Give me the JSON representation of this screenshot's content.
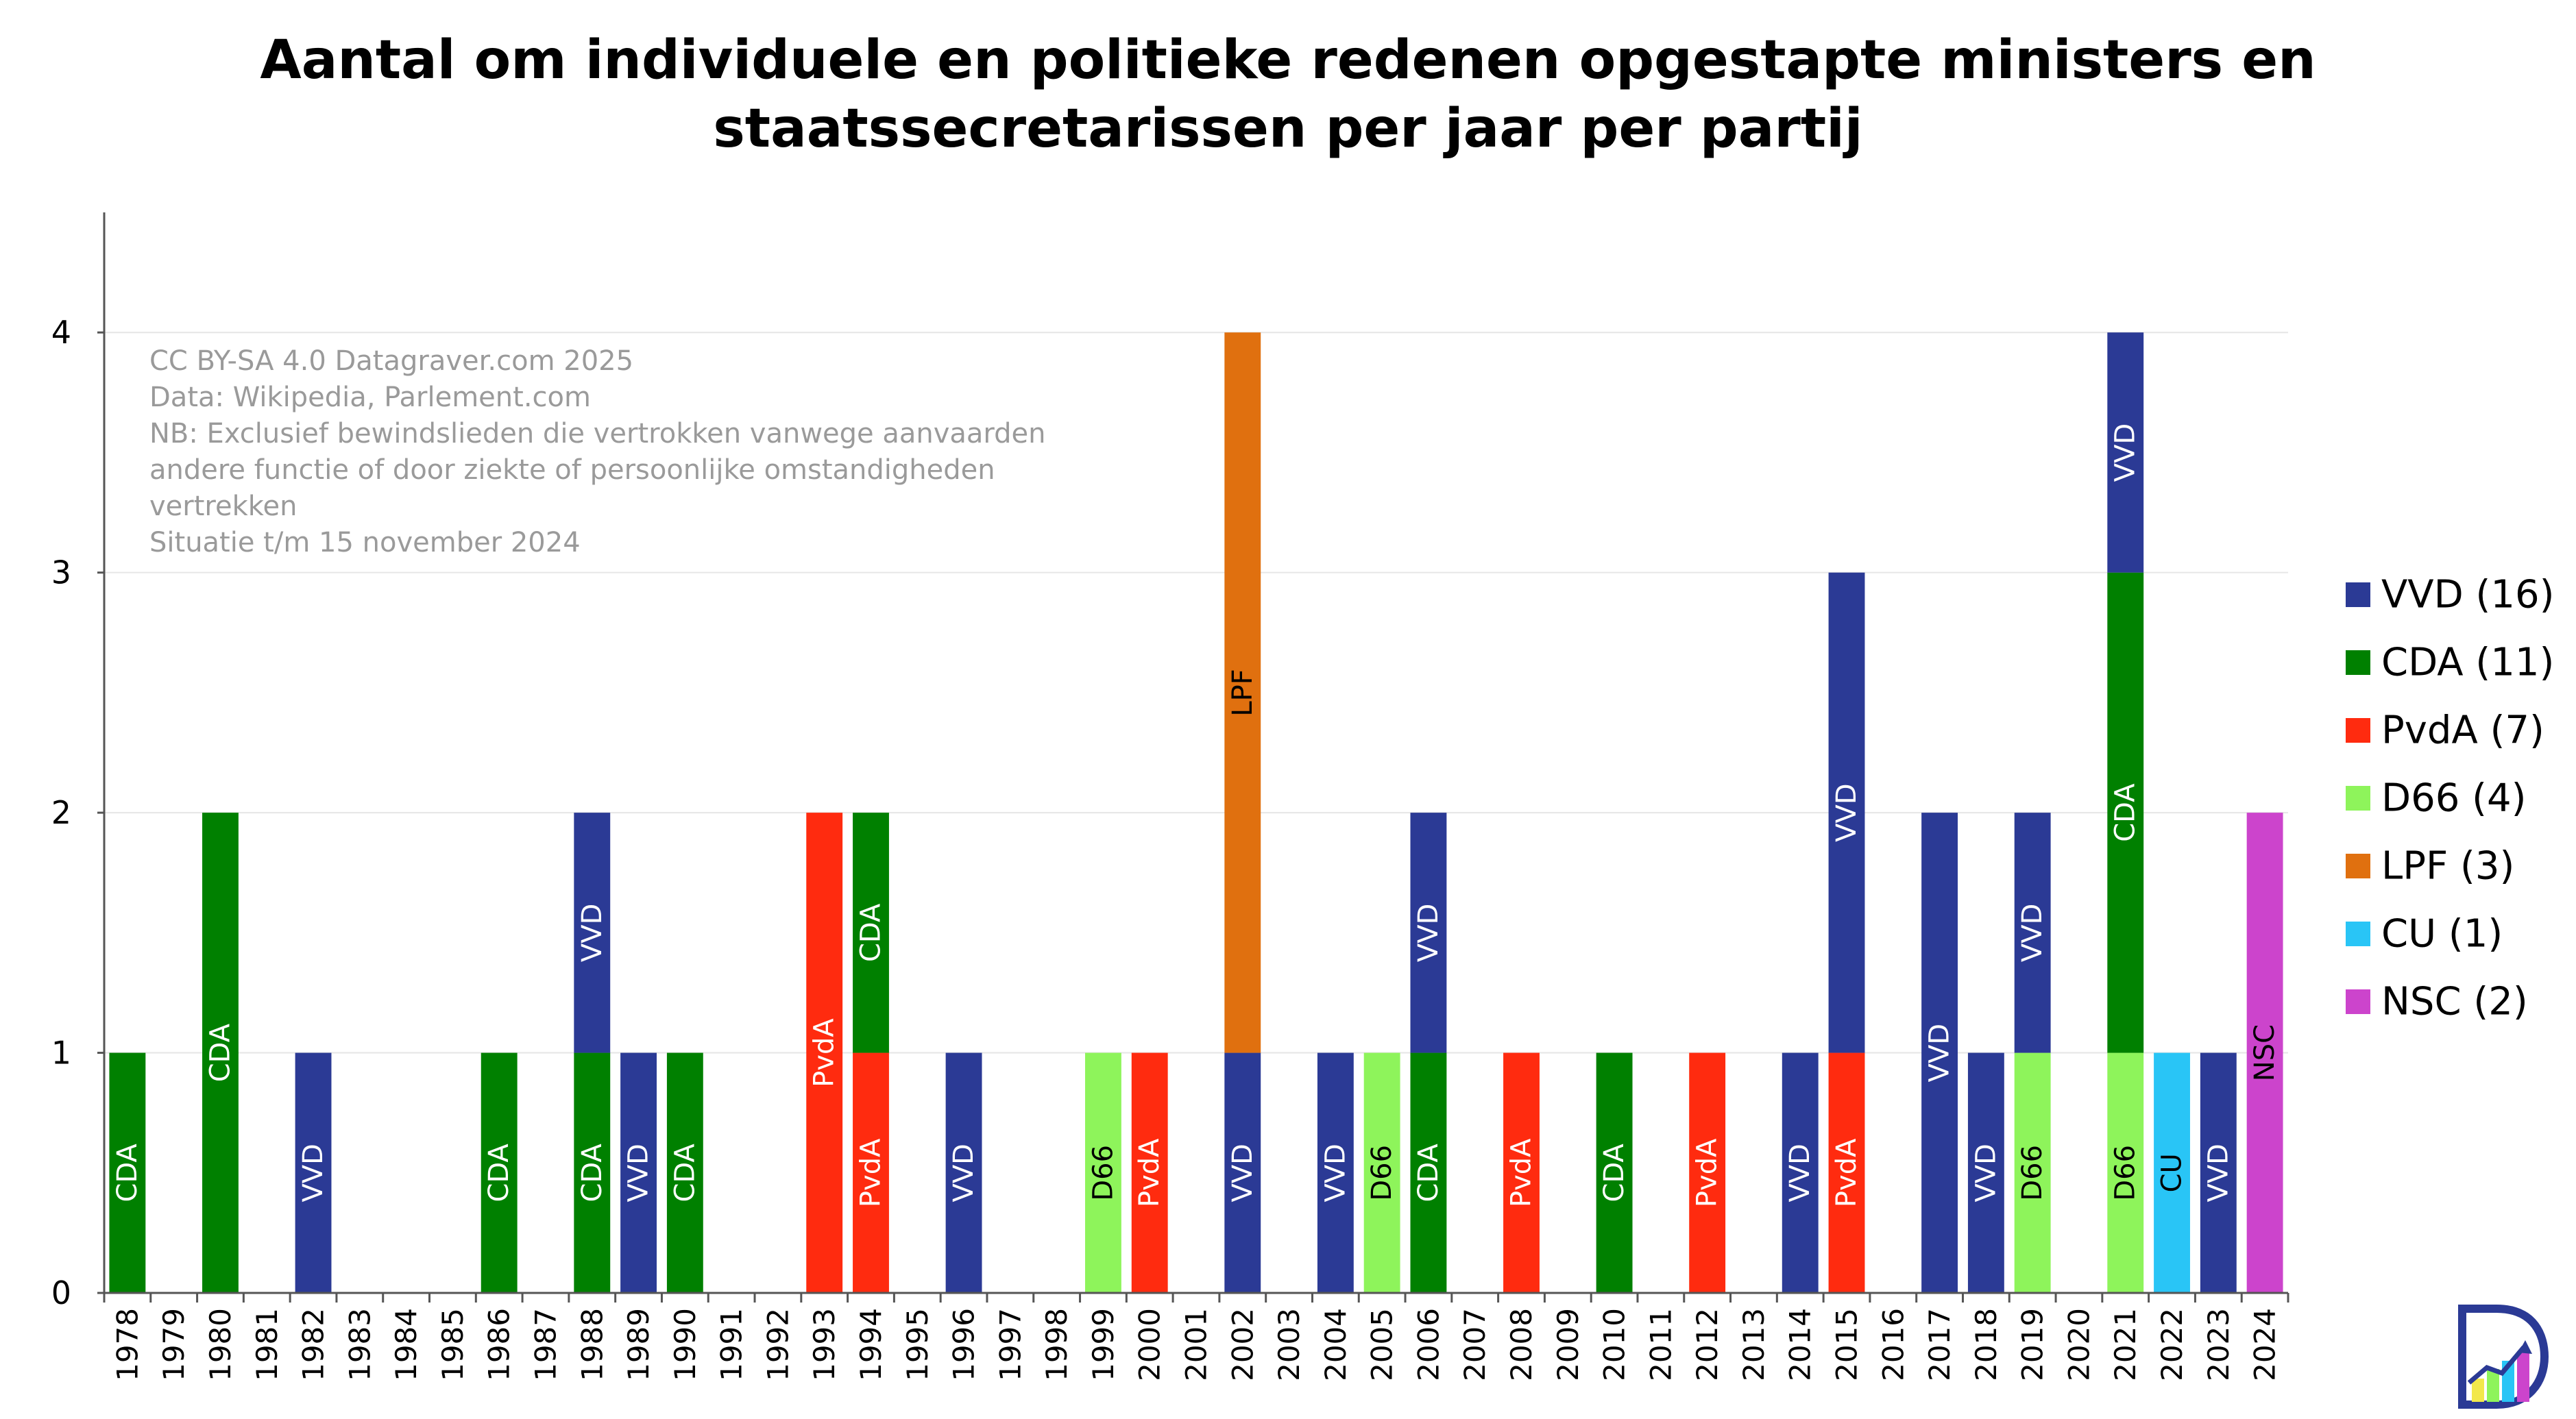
{
  "chart_data": {
    "type": "bar",
    "stacked": true,
    "title_lines": [
      "Aantal om individuele en politieke redenen opgestapte ministers en",
      "staatssecretarissen per jaar per partij"
    ],
    "annotation_lines": [
      "CC BY-SA 4.0 Datagraver.com 2025",
      "Data: Wikipedia, Parlement.com",
      "NB: Exclusief bewindslieden die vertrokken vanwege aanvaarden",
      "andere functie of door ziekte of persoonlijke omstandigheden",
      "vertrekken",
      "Situatie t/m  15 november 2024"
    ],
    "ylim": [
      0,
      4.5
    ],
    "yticks": [
      "0",
      "1",
      "2",
      "3",
      "4"
    ],
    "grid": true,
    "legend_position": "right",
    "categories": [
      "1978",
      "1979",
      "1980",
      "1981",
      "1982",
      "1983",
      "1984",
      "1985",
      "1986",
      "1987",
      "1988",
      "1989",
      "1990",
      "1991",
      "1992",
      "1993",
      "1994",
      "1995",
      "1996",
      "1997",
      "1998",
      "1999",
      "2000",
      "2001",
      "2002",
      "2003",
      "2004",
      "2005",
      "2006",
      "2007",
      "2008",
      "2009",
      "2010",
      "2011",
      "2012",
      "2013",
      "2014",
      "2015",
      "2016",
      "2017",
      "2018",
      "2019",
      "2020",
      "2021",
      "2022",
      "2023",
      "2024"
    ],
    "series": [
      {
        "name": "D66",
        "legend": "D66 (4)",
        "color": "#8EF45B",
        "label_color": "#000000",
        "values": [
          0,
          0,
          0,
          0,
          0,
          0,
          0,
          0,
          0,
          0,
          0,
          0,
          0,
          0,
          0,
          0,
          0,
          0,
          0,
          0,
          0,
          1,
          0,
          0,
          0,
          0,
          0,
          1,
          0,
          0,
          0,
          0,
          0,
          0,
          0,
          0,
          0,
          0,
          0,
          0,
          0,
          1,
          0,
          1,
          0,
          0,
          0
        ]
      },
      {
        "name": "PvdA",
        "legend": "PvdA (7)",
        "color": "#FF2B0F",
        "label_color": "#ffffff",
        "values": [
          0,
          0,
          0,
          0,
          0,
          0,
          0,
          0,
          0,
          0,
          0,
          0,
          0,
          0,
          0,
          2,
          1,
          0,
          0,
          0,
          0,
          0,
          1,
          0,
          0,
          0,
          0,
          0,
          0,
          0,
          1,
          0,
          0,
          0,
          1,
          0,
          0,
          1,
          0,
          0,
          0,
          0,
          0,
          0,
          0,
          0,
          0
        ]
      },
      {
        "name": "CDA",
        "legend": "CDA (11)",
        "color": "#008000",
        "label_color": "#ffffff",
        "values": [
          1,
          0,
          2,
          0,
          0,
          0,
          0,
          0,
          1,
          0,
          1,
          0,
          1,
          0,
          0,
          0,
          1,
          0,
          0,
          0,
          0,
          0,
          0,
          0,
          0,
          0,
          0,
          0,
          1,
          0,
          0,
          0,
          1,
          0,
          0,
          0,
          0,
          0,
          0,
          0,
          0,
          0,
          0,
          2,
          0,
          0,
          0
        ]
      },
      {
        "name": "VVD",
        "legend": "VVD (16)",
        "color": "#2B3A95",
        "label_color": "#ffffff",
        "values": [
          0,
          0,
          0,
          0,
          1,
          0,
          0,
          0,
          0,
          0,
          1,
          1,
          0,
          0,
          0,
          0,
          0,
          0,
          1,
          0,
          0,
          0,
          0,
          0,
          1,
          0,
          1,
          0,
          1,
          0,
          0,
          0,
          0,
          0,
          0,
          0,
          1,
          2,
          0,
          2,
          1,
          1,
          0,
          1,
          0,
          1,
          0
        ]
      },
      {
        "name": "LPF",
        "legend": "LPF (3)",
        "color": "#E0700F",
        "label_color": "#000000",
        "values": [
          0,
          0,
          0,
          0,
          0,
          0,
          0,
          0,
          0,
          0,
          0,
          0,
          0,
          0,
          0,
          0,
          0,
          0,
          0,
          0,
          0,
          0,
          0,
          0,
          3,
          0,
          0,
          0,
          0,
          0,
          0,
          0,
          0,
          0,
          0,
          0,
          0,
          0,
          0,
          0,
          0,
          0,
          0,
          0,
          0,
          0,
          0
        ]
      },
      {
        "name": "CU",
        "legend": "CU (1)",
        "color": "#29C5F6",
        "label_color": "#000000",
        "values": [
          0,
          0,
          0,
          0,
          0,
          0,
          0,
          0,
          0,
          0,
          0,
          0,
          0,
          0,
          0,
          0,
          0,
          0,
          0,
          0,
          0,
          0,
          0,
          0,
          0,
          0,
          0,
          0,
          0,
          0,
          0,
          0,
          0,
          0,
          0,
          0,
          0,
          0,
          0,
          0,
          0,
          0,
          0,
          0,
          1,
          0,
          0
        ]
      },
      {
        "name": "NSC",
        "legend": "NSC (2)",
        "color": "#CC44CC",
        "label_color": "#000000",
        "values": [
          0,
          0,
          0,
          0,
          0,
          0,
          0,
          0,
          0,
          0,
          0,
          0,
          0,
          0,
          0,
          0,
          0,
          0,
          0,
          0,
          0,
          0,
          0,
          0,
          0,
          0,
          0,
          0,
          0,
          0,
          0,
          0,
          0,
          0,
          0,
          0,
          0,
          0,
          0,
          0,
          0,
          0,
          0,
          0,
          0,
          0,
          2
        ]
      }
    ],
    "legend_order": [
      "VVD",
      "CDA",
      "PvdA",
      "D66",
      "LPF",
      "CU",
      "NSC"
    ]
  },
  "logo": {
    "name": "datagraver-logo",
    "colors": [
      "#2B3A95",
      "#F2E84B",
      "#8EF45B",
      "#29C5F6",
      "#CC44CC"
    ]
  }
}
